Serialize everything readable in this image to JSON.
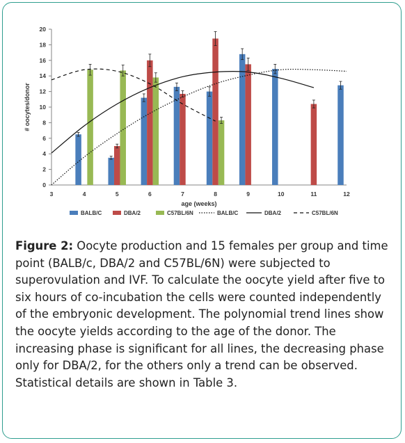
{
  "chart_data": {
    "type": "bar",
    "x_categories": [
      "3",
      "4",
      "5",
      "6",
      "7",
      "8",
      "9",
      "10",
      "11",
      "12"
    ],
    "xlabel": "age (weeks)",
    "ylabel": "# oocytes/donor",
    "ylim": [
      0,
      20
    ],
    "yticks": [
      0,
      2,
      4,
      6,
      8,
      10,
      12,
      14,
      16,
      18,
      20
    ],
    "grid": false,
    "legend_position": "bottom",
    "series": [
      {
        "name": "BALB/C",
        "color": "#4a7ebb",
        "values": [
          null,
          6.5,
          3.5,
          11.2,
          12.6,
          12.0,
          16.8,
          14.9,
          null,
          12.8
        ],
        "errors": [
          0,
          0.25,
          0.2,
          0.5,
          0.5,
          0.6,
          0.7,
          0.6,
          0,
          0.5
        ]
      },
      {
        "name": "DBA/2",
        "color": "#be4b48",
        "values": [
          null,
          null,
          5.0,
          16.0,
          11.7,
          18.8,
          15.5,
          null,
          10.4,
          null
        ],
        "errors": [
          0,
          0,
          0.25,
          0.8,
          0.4,
          0.9,
          0.8,
          0,
          0.5,
          0
        ]
      },
      {
        "name": "C57BL/6N",
        "color": "#98b954",
        "values": [
          null,
          14.8,
          14.7,
          13.8,
          null,
          8.3,
          null,
          null,
          null,
          null
        ],
        "errors": [
          0,
          0.7,
          0.7,
          0.6,
          0,
          0.4,
          0,
          0,
          0,
          0
        ]
      }
    ],
    "trendlines": [
      {
        "name": "BALB/C",
        "style": "dotted",
        "x": [
          3,
          4,
          5,
          6,
          7,
          8,
          9,
          10,
          11,
          12
        ],
        "y": [
          0.0,
          3.6,
          6.6,
          9.2,
          11.3,
          13.0,
          14.1,
          14.8,
          14.8,
          14.6
        ]
      },
      {
        "name": "DBA/2",
        "style": "solid",
        "x": [
          3,
          4,
          5,
          6,
          7,
          8,
          9,
          10,
          11
        ],
        "y": [
          4.1,
          7.6,
          10.4,
          12.5,
          13.9,
          14.5,
          14.5,
          13.7,
          12.5
        ]
      },
      {
        "name": "C57BL/6N",
        "style": "dashed",
        "x": [
          3,
          4,
          5,
          6,
          7,
          8
        ],
        "y": [
          13.5,
          14.8,
          14.6,
          13.0,
          10.4,
          8.2
        ]
      }
    ],
    "legend": {
      "bars": [
        "BALB/C",
        "DBA/2",
        "C57BL/6N"
      ],
      "lines": [
        "BALB/C",
        "DBA/2",
        "C57BL/6N"
      ]
    }
  },
  "caption": {
    "label": "Figure 2:",
    "text": " Oocyte production and 15 females per group and time point (BALB/c, DBA/2 and C57BL/6N) were subjected to superovulation and IVF. To calculate the oocyte yield after five to six hours of co-incubation the cells were counted independently of the embryonic development. The polynomial trend lines show the oocyte yields according to the age of the donor. The increasing phase is significant for all lines, the decreasing phase only for DBA/2, for the others only a trend can be observed. Statistical details are shown in Table 3."
  }
}
